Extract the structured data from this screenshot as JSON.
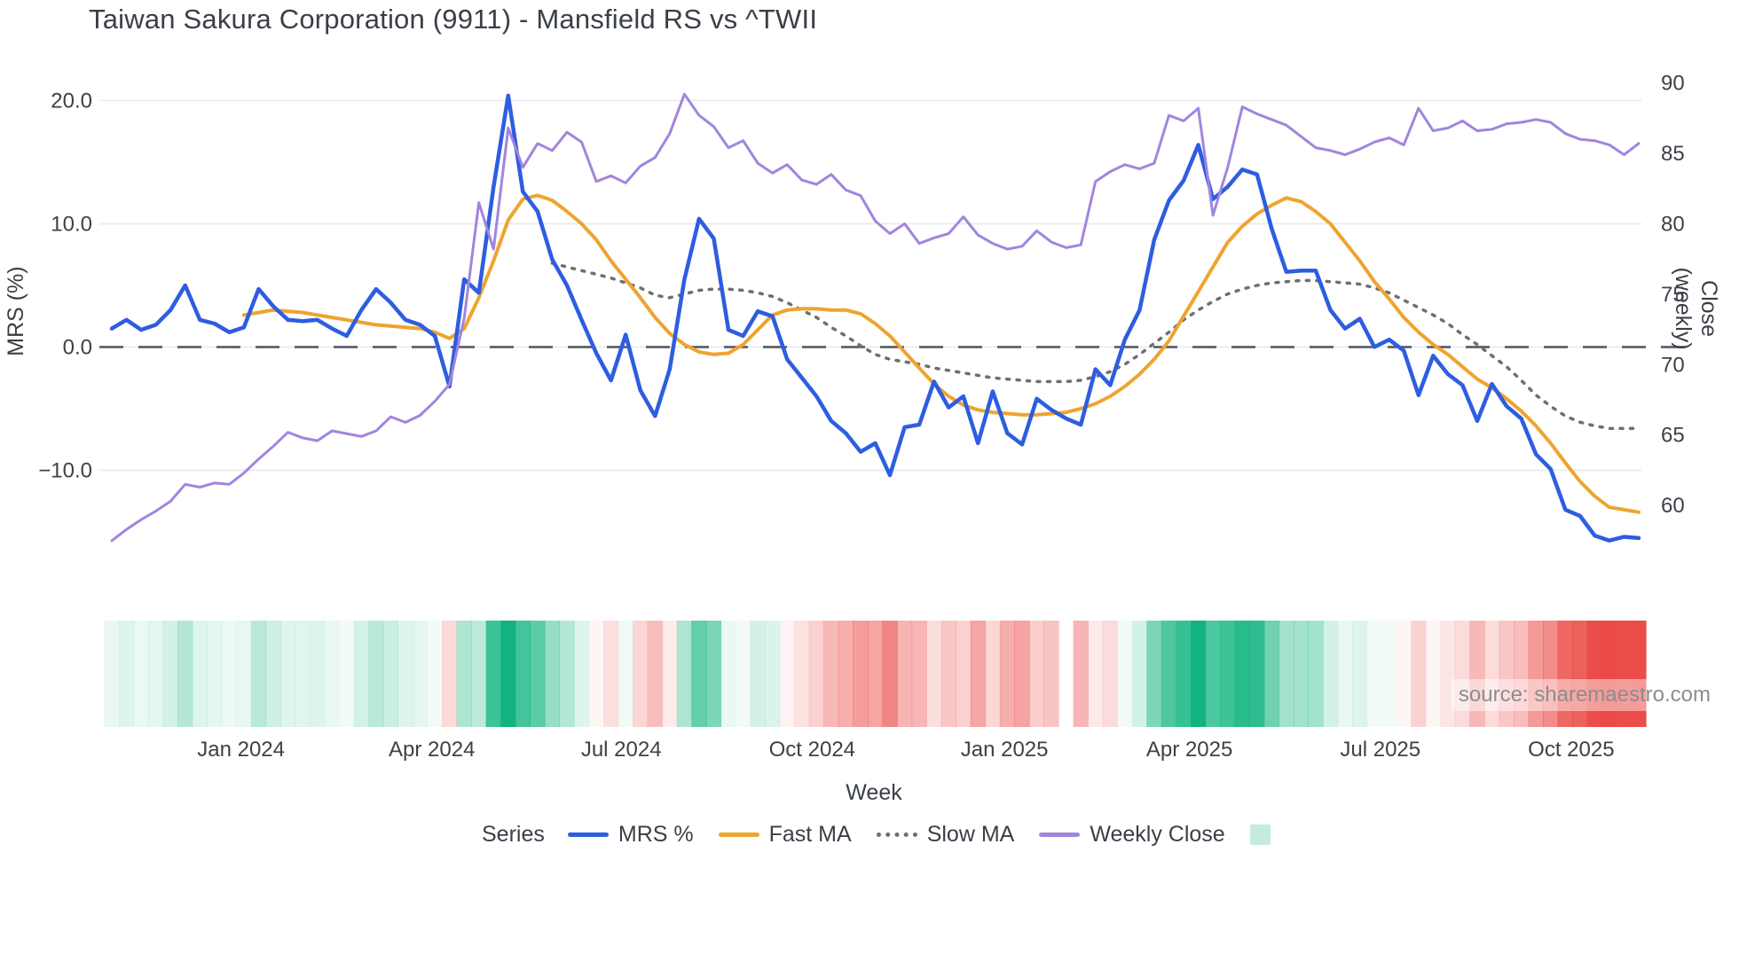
{
  "title": "Taiwan Sakura Corporation (9911) - Mansfield RS vs ^TWII",
  "source_note": "source: sharemaestro.com",
  "axes": {
    "left_title": "MRS (%)",
    "right_title": "Close (weekly)",
    "x_title": "Week",
    "left_ticks": [
      {
        "label": "20.0",
        "value": 20
      },
      {
        "label": "10.0",
        "value": 10
      },
      {
        "label": "0.0",
        "value": 0
      },
      {
        "label": "−10.0",
        "value": -10
      }
    ],
    "right_ticks": [
      {
        "label": "90",
        "value": 90
      },
      {
        "label": "85",
        "value": 85
      },
      {
        "label": "80",
        "value": 80
      },
      {
        "label": "75",
        "value": 75
      },
      {
        "label": "70",
        "value": 70
      },
      {
        "label": "65",
        "value": 65
      },
      {
        "label": "60",
        "value": 60
      }
    ],
    "x_ticks": [
      {
        "label": "Jan 2024",
        "week": 8.8
      },
      {
        "label": "Apr 2024",
        "week": 21.8
      },
      {
        "label": "Jul 2024",
        "week": 34.7
      },
      {
        "label": "Oct 2024",
        "week": 47.7
      },
      {
        "label": "Jan 2025",
        "week": 60.8
      },
      {
        "label": "Apr 2025",
        "week": 73.4
      },
      {
        "label": "Jul 2025",
        "week": 86.4
      },
      {
        "label": "Oct 2025",
        "week": 99.4
      }
    ]
  },
  "legend": {
    "series_label": "Series",
    "items": [
      {
        "label": "MRS %",
        "style": "line",
        "color": "#2d5de0"
      },
      {
        "label": "Fast MA",
        "style": "line",
        "color": "#eea42f"
      },
      {
        "label": "Slow MA",
        "style": "dotted",
        "color": "#6f6f6f"
      },
      {
        "label": "Weekly Close",
        "style": "line",
        "color": "#a185de"
      },
      {
        "label": "",
        "style": "box",
        "color": "rgba(17,180,128,0.25)"
      }
    ]
  },
  "chart_data": {
    "type": "line",
    "x_axis": "weeks (Nov 2023 – Oct 2025, weekly)",
    "weeks_count": 105,
    "ylim_left": [
      -16.8,
      22.4
    ],
    "ylim_right": [
      56.55,
      90.85
    ],
    "grid": "horizontal-light",
    "zero_line": {
      "value": 0,
      "style": "dashed",
      "color": "#555b66"
    },
    "legend_position": "bottom",
    "heat_strip": {
      "description": "weekly MRS heat strip: green positive, red negative, intensity = |MRS|/16",
      "pos_color": "#11b480",
      "neg_color": "#ea4642",
      "gap_weeks": [
        65
      ]
    },
    "series": [
      {
        "name": "MRS %",
        "axis": "left",
        "color": "#2d5de0",
        "dash": "solid",
        "width": 4.5,
        "values": [
          1.5,
          2.2,
          1.4,
          1.8,
          3.0,
          5.0,
          2.2,
          1.9,
          1.2,
          1.6,
          4.7,
          3.3,
          2.2,
          2.1,
          2.2,
          1.5,
          0.9,
          3.0,
          4.7,
          3.6,
          2.2,
          1.8,
          0.9,
          -3.2,
          5.5,
          4.4,
          13.0,
          20.4,
          12.6,
          11.0,
          7.1,
          5.0,
          2.2,
          -0.5,
          -2.7,
          1.0,
          -3.5,
          -5.6,
          -1.8,
          5.5,
          10.4,
          8.8,
          1.4,
          0.9,
          2.9,
          2.5,
          -1.0,
          -2.5,
          -4.0,
          -6.0,
          -7.0,
          -8.5,
          -7.8,
          -10.4,
          -6.5,
          -6.3,
          -2.8,
          -4.9,
          -4.0,
          -7.8,
          -3.6,
          -7.0,
          -7.9,
          -4.2,
          -5.1,
          -5.8,
          -6.3,
          -1.8,
          -3.1,
          0.6,
          3.0,
          8.7,
          11.9,
          13.5,
          16.4,
          12.0,
          13.0,
          14.4,
          14.0,
          9.6,
          6.1,
          6.2,
          6.2,
          3.0,
          1.5,
          2.3,
          0.0,
          0.6,
          -0.3,
          -3.9,
          -0.7,
          -2.2,
          -3.1,
          -6.0,
          -3.0,
          -4.8,
          -5.8,
          -8.7,
          -9.9,
          -13.2,
          -13.7,
          -15.3,
          -15.7,
          -15.4,
          -15.5
        ]
      },
      {
        "name": "Fast MA",
        "axis": "left",
        "color": "#eea42f",
        "dash": "solid",
        "width": 4,
        "values": [
          null,
          null,
          null,
          null,
          null,
          null,
          null,
          null,
          null,
          2.6,
          2.8,
          3.0,
          2.9,
          2.8,
          2.6,
          2.4,
          2.2,
          2.0,
          1.8,
          1.7,
          1.6,
          1.5,
          1.2,
          0.7,
          1.5,
          4.0,
          7.0,
          10.3,
          12.0,
          12.3,
          11.9,
          11.0,
          10.0,
          8.7,
          7.0,
          5.5,
          4.0,
          2.4,
          1.1,
          0.2,
          -0.4,
          -0.6,
          -0.5,
          0.2,
          1.4,
          2.6,
          3.0,
          3.1,
          3.1,
          3.0,
          3.0,
          2.7,
          1.9,
          0.9,
          -0.4,
          -1.7,
          -3.0,
          -4.0,
          -4.7,
          -5.1,
          -5.3,
          -5.4,
          -5.5,
          -5.5,
          -5.4,
          -5.3,
          -5.0,
          -4.6,
          -4.0,
          -3.2,
          -2.2,
          -1.0,
          0.5,
          2.5,
          4.5,
          6.5,
          8.5,
          9.8,
          10.8,
          11.5,
          12.1,
          11.8,
          11.0,
          10.0,
          8.5,
          7.0,
          5.3,
          3.9,
          2.4,
          1.2,
          0.2,
          -0.6,
          -1.6,
          -2.6,
          -3.3,
          -4.2,
          -5.2,
          -6.4,
          -7.8,
          -9.4,
          -10.9,
          -12.1,
          -13.0,
          -13.2,
          -13.4
        ]
      },
      {
        "name": "Slow MA",
        "axis": "left",
        "color": "#6f6f6f",
        "dash": "dotted",
        "width": 3.5,
        "values": [
          null,
          null,
          null,
          null,
          null,
          null,
          null,
          null,
          null,
          null,
          null,
          null,
          null,
          null,
          null,
          null,
          null,
          null,
          null,
          null,
          null,
          null,
          null,
          null,
          null,
          null,
          null,
          null,
          null,
          null,
          6.8,
          6.5,
          6.2,
          5.9,
          5.6,
          5.2,
          4.8,
          4.2,
          4.0,
          4.3,
          4.6,
          4.7,
          4.7,
          4.6,
          4.4,
          4.1,
          3.6,
          3.0,
          2.4,
          1.6,
          0.9,
          0.1,
          -0.6,
          -1.0,
          -1.2,
          -1.4,
          -1.7,
          -1.9,
          -2.1,
          -2.3,
          -2.5,
          -2.6,
          -2.7,
          -2.8,
          -2.8,
          -2.8,
          -2.7,
          -2.4,
          -2.0,
          -1.4,
          -0.6,
          0.3,
          1.2,
          2.2,
          3.0,
          3.7,
          4.3,
          4.7,
          5.0,
          5.2,
          5.3,
          5.4,
          5.4,
          5.3,
          5.2,
          5.1,
          4.8,
          4.4,
          3.8,
          3.2,
          2.6,
          1.9,
          1.0,
          0.2,
          -0.7,
          -1.6,
          -2.7,
          -3.9,
          -4.8,
          -5.6,
          -6.1,
          -6.4,
          -6.6,
          -6.6,
          -6.6
        ]
      },
      {
        "name": "Weekly Close",
        "axis": "right",
        "color": "#a185de",
        "dash": "solid",
        "width": 3,
        "values": [
          57.5,
          58.3,
          59.0,
          59.6,
          60.3,
          61.5,
          61.3,
          61.6,
          61.5,
          62.3,
          63.3,
          64.2,
          65.2,
          64.8,
          64.6,
          65.3,
          65.1,
          64.9,
          65.3,
          66.3,
          65.9,
          66.4,
          67.4,
          68.6,
          73.3,
          81.5,
          78.2,
          86.8,
          84.0,
          85.7,
          85.2,
          86.5,
          85.8,
          83.0,
          83.4,
          82.9,
          84.1,
          84.7,
          86.4,
          89.2,
          87.7,
          86.9,
          85.4,
          85.9,
          84.3,
          83.6,
          84.2,
          83.1,
          82.8,
          83.5,
          82.4,
          82.0,
          80.2,
          79.3,
          80.0,
          78.6,
          79.0,
          79.3,
          80.5,
          79.2,
          78.6,
          78.2,
          78.4,
          79.5,
          78.7,
          78.3,
          78.5,
          83.0,
          83.7,
          84.2,
          83.9,
          84.3,
          87.7,
          87.3,
          88.2,
          80.6,
          84.0,
          88.3,
          87.8,
          87.4,
          87.0,
          86.2,
          85.4,
          85.2,
          84.9,
          85.3,
          85.8,
          86.1,
          85.6,
          88.2,
          86.6,
          86.8,
          87.3,
          86.6,
          86.7,
          87.1,
          87.2,
          87.4,
          87.2,
          86.4,
          86.0,
          85.9,
          85.6,
          84.9,
          85.7
        ]
      }
    ]
  }
}
